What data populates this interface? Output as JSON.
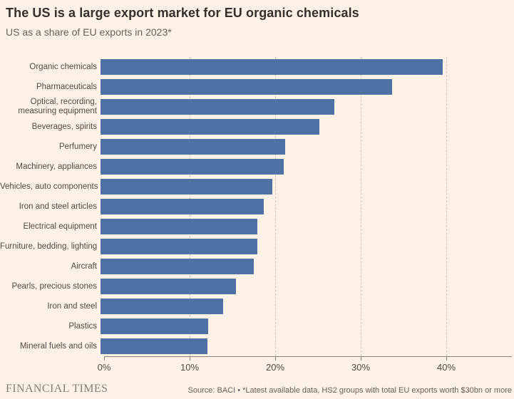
{
  "page": {
    "background": "#fff1e5"
  },
  "header": {
    "title": "The US is a large export market for EU organic chemicals",
    "subtitle": "US as a share of EU exports in 2023*"
  },
  "chart_data": {
    "type": "bar",
    "orientation": "horizontal",
    "title": "The US is a large export market for EU organic chemicals",
    "subtitle": "US as a share of EU exports in 2023*",
    "xlabel": "",
    "ylabel": "",
    "categories": [
      "Organic chemicals",
      "Pharmaceuticals",
      "Optical, recording,\nmeasuring equipment",
      "Beverages, spirits",
      "Perfumery",
      "Machinery, appliances",
      "Vehicles, auto components",
      "Iron and steel articles",
      "Electrical equipment",
      "Furniture, bedding, lighting",
      "Aircraft",
      "Pearls, precious stones",
      "Iron and steel",
      "Plastics",
      "Mineral fuels and oils"
    ],
    "values": [
      40,
      34.1,
      27.3,
      25.6,
      21.6,
      21.4,
      20.1,
      19.1,
      18.3,
      18.3,
      17.9,
      15.8,
      14.3,
      12.6,
      12.5
    ],
    "unit": "%",
    "x_ticks": [
      "0%",
      "10%",
      "20%",
      "30%",
      "40%"
    ],
    "x_tick_values": [
      0,
      10,
      20,
      30,
      40
    ],
    "xlim": [
      0,
      47.7
    ],
    "grid": "vertical-dashed",
    "legend": "none",
    "bar_color": "#4d72a3"
  },
  "footer": {
    "brand": "FINANCIAL TIMES",
    "source": "Source: BACI • *Latest available data, HS2 groups with total EU exports worth $30bn or more"
  }
}
